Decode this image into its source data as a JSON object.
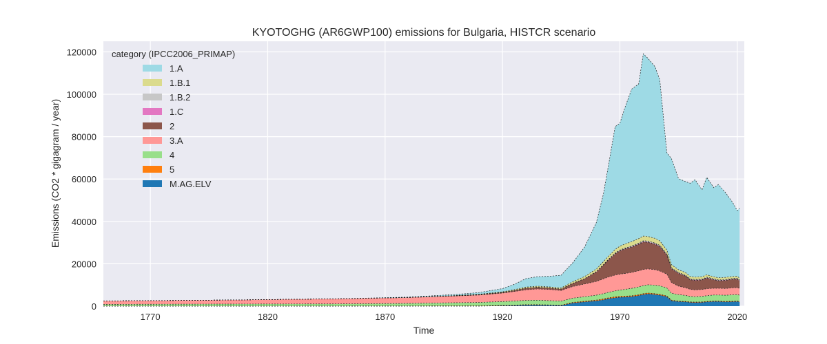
{
  "chart_data": {
    "type": "area",
    "stacked": true,
    "title": "KYOTOGHG (AR6GWP100) emissions for Bulgaria, HISTCR scenario",
    "xlabel": "Time",
    "ylabel": "Emissions (CO2 * gigagram / year)",
    "xlim": [
      1750,
      2023
    ],
    "ylim": [
      0,
      125000
    ],
    "x_ticks": [
      "1770",
      "1820",
      "1870",
      "1920",
      "1970",
      "2020"
    ],
    "y_ticks": [
      "0",
      "20000",
      "40000",
      "60000",
      "80000",
      "100000",
      "120000"
    ],
    "grid": true,
    "legend": {
      "title": "category (IPCC2006_PRIMAP)",
      "placement": "top-left"
    },
    "x": [
      1750,
      1800,
      1850,
      1880,
      1900,
      1910,
      1920,
      1925,
      1930,
      1935,
      1940,
      1945,
      1950,
      1955,
      1960,
      1963,
      1965,
      1968,
      1970,
      1972,
      1975,
      1978,
      1980,
      1982,
      1985,
      1987,
      1990,
      1992,
      1995,
      1998,
      2000,
      2002,
      2005,
      2007,
      2010,
      2012,
      2015,
      2018,
      2020,
      2021
    ],
    "series": [
      {
        "name": "M.AG.ELV",
        "color": "#1f77b4",
        "values": [
          0,
          0,
          0,
          0,
          0,
          0,
          200,
          300,
          500,
          500,
          400,
          300,
          1500,
          2000,
          2500,
          3000,
          3500,
          4000,
          4200,
          4300,
          4500,
          5000,
          5500,
          5800,
          5500,
          5200,
          4500,
          2500,
          2200,
          2000,
          1800,
          1700,
          1800,
          2000,
          2200,
          2200,
          2000,
          2100,
          2200,
          2000
        ]
      },
      {
        "name": "5",
        "color": "#ff7f0e",
        "values": [
          50,
          60,
          80,
          100,
          120,
          140,
          180,
          200,
          220,
          220,
          200,
          200,
          300,
          350,
          400,
          400,
          400,
          400,
          400,
          400,
          400,
          400,
          400,
          400,
          400,
          400,
          350,
          300,
          250,
          250,
          250,
          250,
          250,
          250,
          250,
          250,
          250,
          250,
          250,
          250
        ]
      },
      {
        "name": "4",
        "color": "#98df8a",
        "values": [
          800,
          900,
          1000,
          1200,
          1500,
          1600,
          1800,
          1900,
          2000,
          2100,
          2000,
          1900,
          2000,
          2100,
          2300,
          2500,
          2600,
          2800,
          3000,
          3200,
          3500,
          3700,
          3800,
          3900,
          4000,
          4000,
          3800,
          3300,
          3000,
          2800,
          2600,
          2500,
          2600,
          2700,
          2800,
          2800,
          2900,
          3000,
          3000,
          2900
        ]
      },
      {
        "name": "3.A",
        "color": "#ff9896",
        "values": [
          1600,
          1900,
          2400,
          2800,
          3200,
          3500,
          4000,
          4500,
          5000,
          5300,
          5300,
          5000,
          5500,
          6000,
          6500,
          7000,
          7200,
          7500,
          7500,
          7500,
          7500,
          7600,
          7600,
          7500,
          7300,
          7000,
          6500,
          5000,
          4000,
          3600,
          3300,
          3200,
          3200,
          3300,
          3200,
          3200,
          3200,
          3300,
          3300,
          3200
        ]
      },
      {
        "name": "2",
        "color": "#8c564b",
        "values": [
          0,
          0,
          0,
          0,
          100,
          200,
          300,
          500,
          800,
          800,
          700,
          700,
          1500,
          2500,
          4500,
          6500,
          8000,
          10000,
          11000,
          11500,
          12000,
          12500,
          13000,
          12500,
          12000,
          11500,
          9000,
          6500,
          6000,
          5500,
          4500,
          4500,
          4500,
          5000,
          4000,
          3500,
          3800,
          4000,
          4000,
          3500
        ]
      },
      {
        "name": "1.C",
        "color": "#e377c2",
        "values": [
          0,
          0,
          0,
          0,
          0,
          0,
          0,
          0,
          0,
          0,
          0,
          0,
          0,
          0,
          50,
          60,
          80,
          100,
          120,
          140,
          160,
          180,
          200,
          200,
          200,
          200,
          180,
          150,
          150,
          150,
          150,
          150,
          150,
          150,
          150,
          150,
          150,
          150,
          150,
          150
        ]
      },
      {
        "name": "1.B.2",
        "color": "#c7c7c7",
        "values": [
          0,
          0,
          0,
          0,
          0,
          0,
          0,
          0,
          0,
          0,
          0,
          0,
          0,
          50,
          100,
          150,
          200,
          250,
          300,
          300,
          350,
          400,
          400,
          400,
          400,
          400,
          350,
          300,
          300,
          300,
          300,
          300,
          300,
          300,
          300,
          300,
          300,
          300,
          300,
          300
        ]
      },
      {
        "name": "1.B.1",
        "color": "#dbdb8d",
        "values": [
          0,
          0,
          0,
          0,
          100,
          200,
          300,
          400,
          500,
          500,
          500,
          500,
          800,
          1000,
          1200,
          1400,
          1500,
          1700,
          1800,
          1900,
          2000,
          2100,
          2200,
          2200,
          2200,
          2100,
          1800,
          1500,
          1300,
          1200,
          1100,
          1100,
          1100,
          1100,
          1000,
          1000,
          1000,
          900,
          900,
          900
        ]
      },
      {
        "name": "1.A",
        "color": "#9edae5",
        "values": [
          0,
          0,
          0,
          200,
          500,
          800,
          1500,
          2500,
          4000,
          4500,
          5000,
          6000,
          9000,
          14000,
          22000,
          32000,
          42000,
          58000,
          58000,
          64000,
          72000,
          73000,
          86000,
          84000,
          81000,
          76000,
          46000,
          50000,
          43000,
          43000,
          44000,
          46000,
          41000,
          46000,
          42000,
          44000,
          40000,
          35000,
          31000,
          33000
        ]
      }
    ]
  }
}
